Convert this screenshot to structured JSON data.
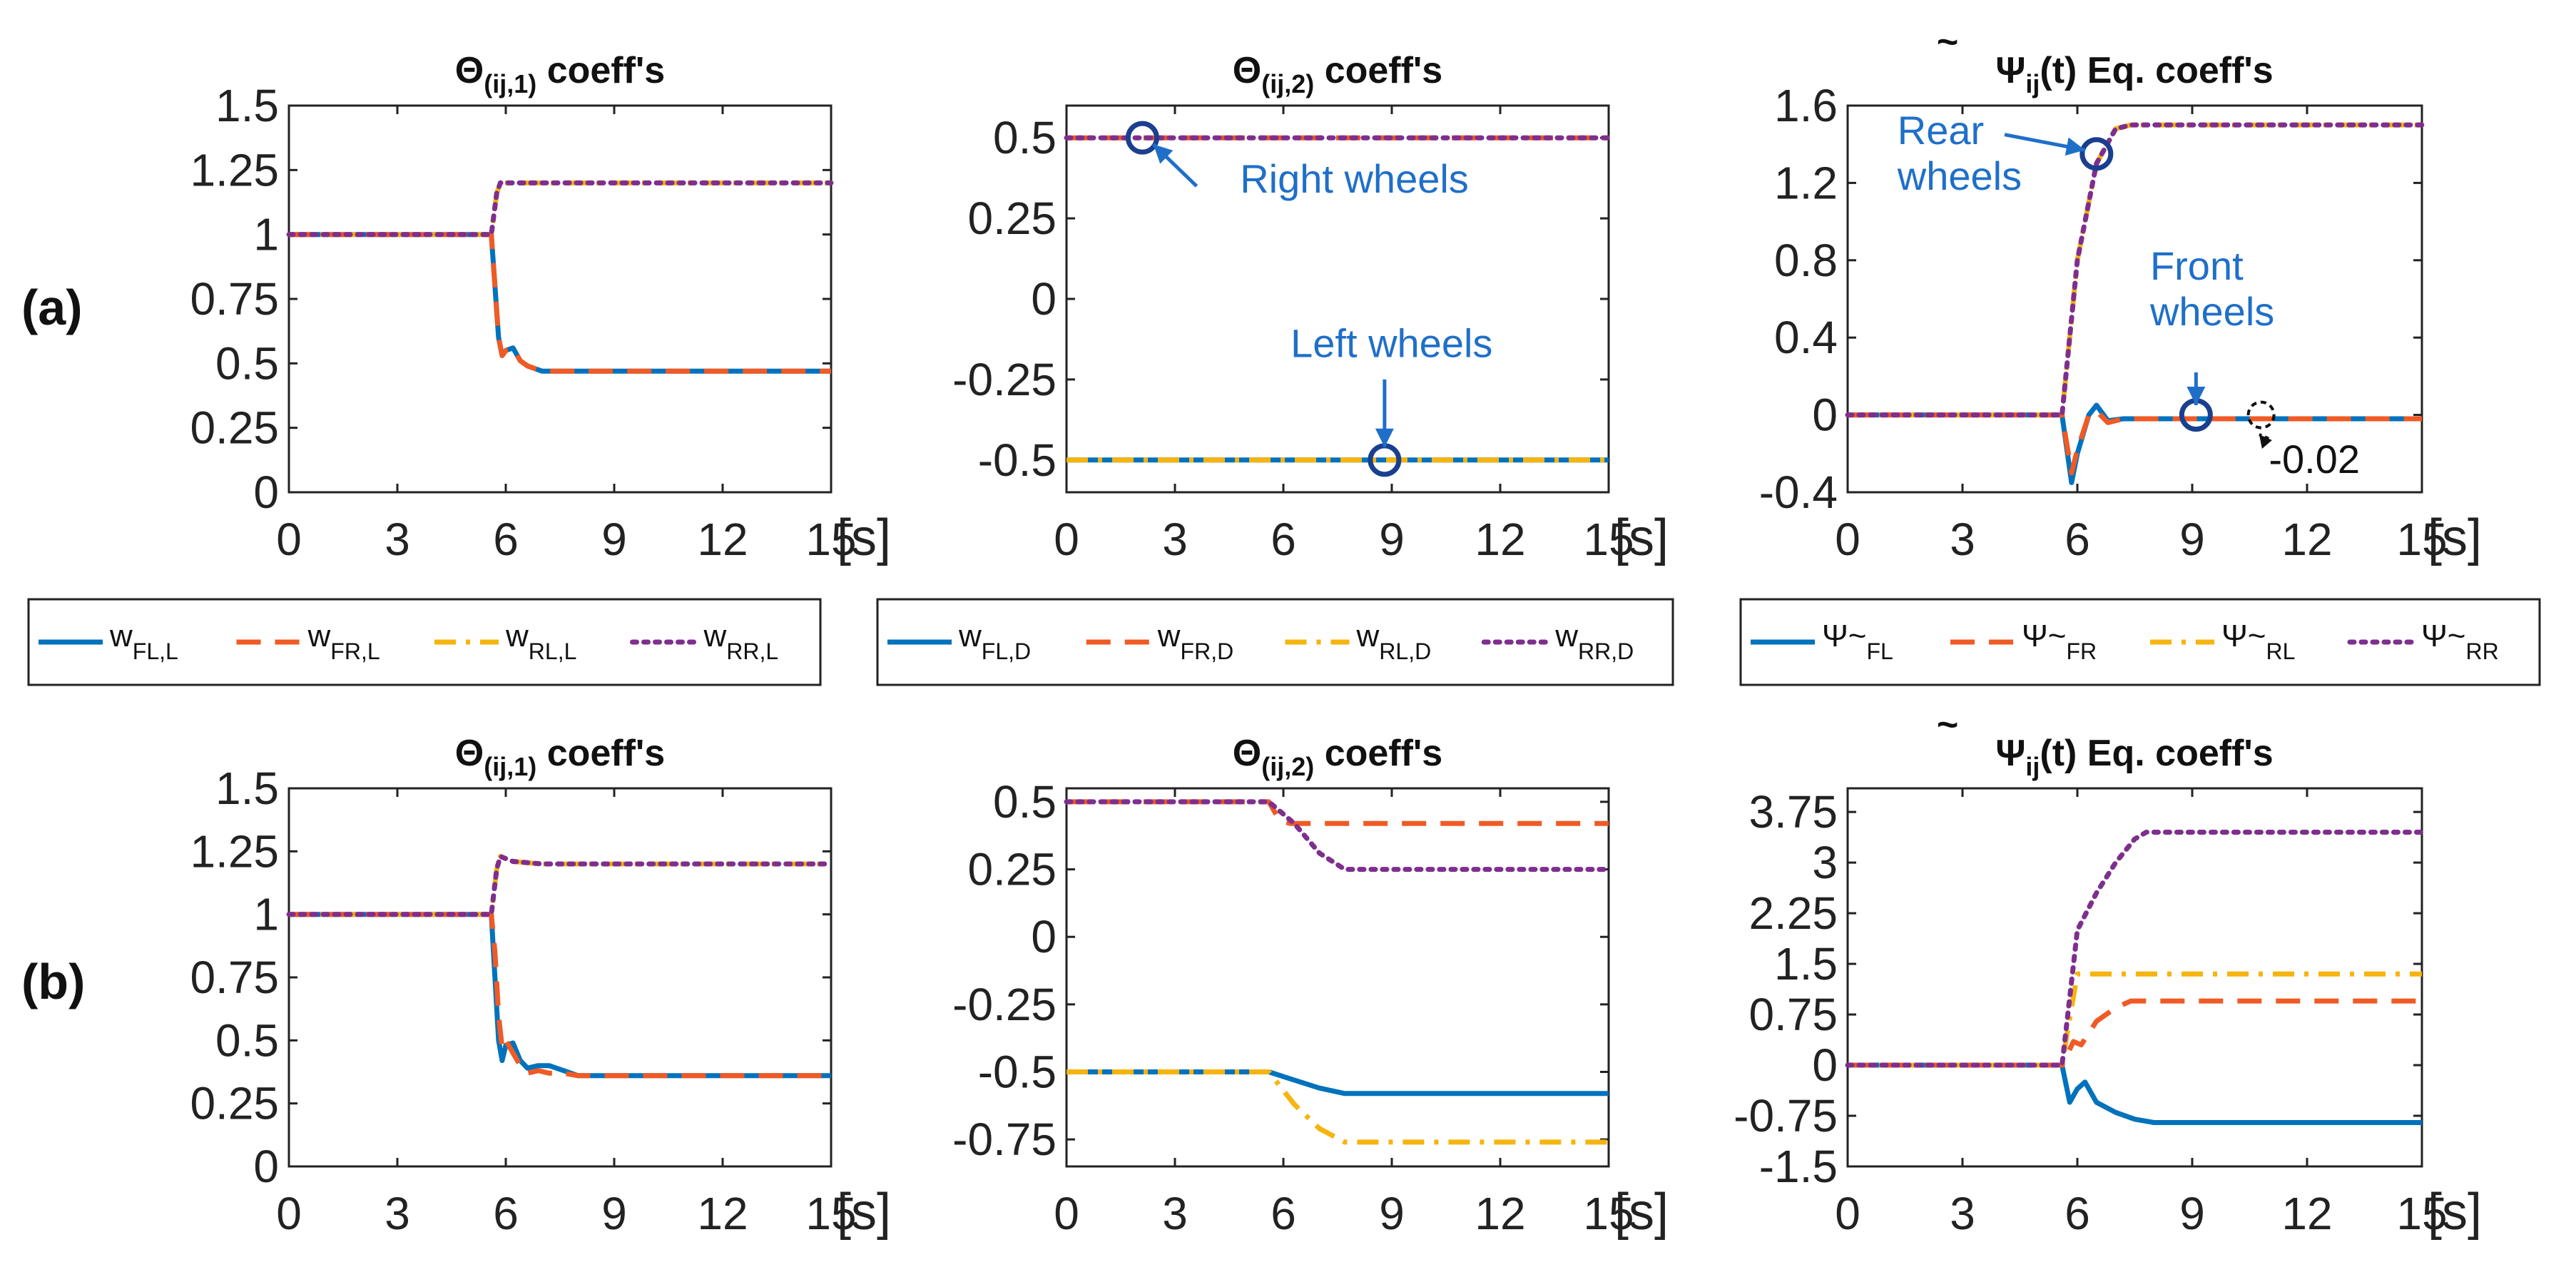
{
  "colors": {
    "FL": "#0072BD",
    "FR": "#F05A24",
    "RL": "#F5B40F",
    "RR": "#7E2F8E",
    "annotation": "#1f6fc9"
  },
  "x_unit": "[s]",
  "row_labels": [
    "(a)",
    "(b)"
  ],
  "legends": [
    {
      "entries": [
        {
          "base": "w",
          "sub": "FL,L",
          "key": "FL"
        },
        {
          "base": "w",
          "sub": "FR,L",
          "key": "FR"
        },
        {
          "base": "w",
          "sub": "RL,L",
          "key": "RL"
        },
        {
          "base": "w",
          "sub": "RR,L",
          "key": "RR"
        }
      ]
    },
    {
      "entries": [
        {
          "base": "w",
          "sub": "FL,D",
          "key": "FL"
        },
        {
          "base": "w",
          "sub": "FR,D",
          "key": "FR"
        },
        {
          "base": "w",
          "sub": "RL,D",
          "key": "RL"
        },
        {
          "base": "w",
          "sub": "RR,D",
          "key": "RR"
        }
      ]
    },
    {
      "entries": [
        {
          "base": "Ψ~",
          "sub": "FL",
          "key": "FL"
        },
        {
          "base": "Ψ~",
          "sub": "FR",
          "key": "FR"
        },
        {
          "base": "Ψ~",
          "sub": "RL",
          "key": "RL"
        },
        {
          "base": "Ψ~",
          "sub": "RR",
          "key": "RR"
        }
      ]
    }
  ],
  "chart_data": [
    {
      "id": "a1",
      "type": "line",
      "title_main": "Θ",
      "title_sub": "(ij,1)",
      "title_rest": " coeff's",
      "xlim": [
        0,
        15
      ],
      "xticks": [
        "0",
        "3",
        "6",
        "9",
        "12",
        "15"
      ],
      "ylim": [
        0,
        1.5
      ],
      "yticks": [
        "0",
        "0.25",
        "0.5",
        "0.75",
        "1",
        "1.25",
        "1.5"
      ],
      "series": [
        {
          "name": "wFL,L",
          "key": "FL",
          "x": [
            0,
            5.6,
            5.7,
            5.8,
            5.9,
            6.0,
            6.2,
            6.4,
            6.6,
            7.0,
            15
          ],
          "y": [
            1,
            1,
            0.8,
            0.6,
            0.53,
            0.55,
            0.56,
            0.51,
            0.49,
            0.47,
            0.47
          ]
        },
        {
          "name": "wFR,L",
          "key": "FR",
          "x": [
            0,
            5.6,
            5.7,
            5.8,
            5.9,
            6.0,
            6.2,
            6.4,
            6.6,
            7.0,
            15
          ],
          "y": [
            1,
            1,
            0.8,
            0.6,
            0.53,
            0.55,
            0.56,
            0.51,
            0.49,
            0.47,
            0.47
          ]
        },
        {
          "name": "wRL,L",
          "key": "RL",
          "x": [
            0,
            5.6,
            5.75,
            5.85,
            15
          ],
          "y": [
            1,
            1,
            1.16,
            1.2,
            1.2
          ]
        },
        {
          "name": "wRR,L",
          "key": "RR",
          "x": [
            0,
            5.6,
            5.75,
            5.85,
            15
          ],
          "y": [
            1,
            1,
            1.16,
            1.2,
            1.2
          ]
        }
      ],
      "markers": [],
      "annotations": []
    },
    {
      "id": "a2",
      "type": "line",
      "title_main": "Θ",
      "title_sub": "(ij,2)",
      "title_rest": " coeff's",
      "xlim": [
        0,
        15
      ],
      "xticks": [
        "0",
        "3",
        "6",
        "9",
        "12",
        "15"
      ],
      "ylim": [
        -0.6,
        0.6
      ],
      "yticks": [
        "-0.5",
        "-0.25",
        "0",
        "0.25",
        "0.5"
      ],
      "series": [
        {
          "name": "wFL,D",
          "key": "FL",
          "x": [
            0,
            15
          ],
          "y": [
            -0.5,
            -0.5
          ]
        },
        {
          "name": "wFR,D",
          "key": "FR",
          "x": [
            0,
            15
          ],
          "y": [
            0.5,
            0.5
          ]
        },
        {
          "name": "wRL,D",
          "key": "RL",
          "x": [
            0,
            15
          ],
          "y": [
            -0.5,
            -0.5
          ]
        },
        {
          "name": "wRR,D",
          "key": "RR",
          "x": [
            0,
            15
          ],
          "y": [
            0.5,
            0.5
          ]
        }
      ],
      "markers": [
        {
          "x": 2.1,
          "y": 0.5
        },
        {
          "x": 8.8,
          "y": -0.5
        }
      ],
      "annotations": [
        {
          "lines": [
            "Right wheels"
          ],
          "tx": 4.8,
          "ty": 0.33,
          "ax": 3.6,
          "ay": 0.35,
          "hx": 2.4,
          "hy": 0.48
        },
        {
          "lines": [
            "Left wheels"
          ],
          "tx": 6.2,
          "ty": -0.18,
          "ax": 8.8,
          "ay": -0.25,
          "hx": 8.8,
          "hy": -0.46
        }
      ]
    },
    {
      "id": "a3",
      "type": "line",
      "title_main": "Ψ",
      "title_sub": "ij",
      "title_rest": "(t) Eq. coeff's",
      "title_tilde": true,
      "xlim": [
        0,
        15
      ],
      "xticks": [
        "0",
        "3",
        "6",
        "9",
        "12",
        "15"
      ],
      "ylim": [
        -0.4,
        1.6
      ],
      "yticks": [
        "-0.4",
        "0",
        "0.4",
        "0.8",
        "1.2",
        "1.6"
      ],
      "series": [
        {
          "name": "Ψ~FL",
          "key": "FL",
          "x": [
            0,
            5.6,
            5.85,
            6.0,
            6.3,
            6.5,
            6.8,
            7.2,
            15
          ],
          "y": [
            0,
            0,
            -0.35,
            -0.2,
            0.0,
            0.05,
            -0.03,
            -0.02,
            -0.02
          ]
        },
        {
          "name": "Ψ~FR",
          "key": "FR",
          "x": [
            0,
            5.6,
            5.85,
            6.0,
            6.3,
            6.5,
            6.8,
            7.2,
            15
          ],
          "y": [
            0,
            0,
            -0.3,
            -0.18,
            0.0,
            0.02,
            -0.04,
            -0.02,
            -0.02
          ]
        },
        {
          "name": "Ψ~RL",
          "key": "RL",
          "x": [
            0,
            5.6,
            6.0,
            6.5,
            7.0,
            7.4,
            15
          ],
          "y": [
            0,
            0,
            0.8,
            1.3,
            1.48,
            1.5,
            1.5
          ]
        },
        {
          "name": "Ψ~RR",
          "key": "RR",
          "x": [
            0,
            5.6,
            6.0,
            6.5,
            7.0,
            7.4,
            15
          ],
          "y": [
            0,
            0,
            0.8,
            1.3,
            1.48,
            1.5,
            1.5
          ]
        }
      ],
      "markers": [
        {
          "x": 6.5,
          "y": 1.35
        },
        {
          "x": 9.1,
          "y": 0.0
        }
      ],
      "dashed_markers": [
        {
          "x": 10.8,
          "y": 0.0
        }
      ],
      "annotations": [
        {
          "lines": [
            "Rear",
            "wheels"
          ],
          "tx": 1.3,
          "ty": 1.4,
          "ax": 4.1,
          "ay": 1.45,
          "hx": 6.2,
          "hy": 1.37
        },
        {
          "lines": [
            "Front",
            "wheels"
          ],
          "tx": 7.9,
          "ty": 0.7,
          "ax": 9.1,
          "ay": 0.22,
          "hx": 9.1,
          "hy": 0.05
        }
      ],
      "callout": {
        "text": "-0.02",
        "tx": 11.0,
        "ty": -0.27,
        "hx": 10.75,
        "hy": -0.02
      }
    },
    {
      "id": "b1",
      "type": "line",
      "title_main": "Θ",
      "title_sub": "(ij,1)",
      "title_rest": " coeff's",
      "xlim": [
        0,
        15
      ],
      "xticks": [
        "0",
        "3",
        "6",
        "9",
        "12",
        "15"
      ],
      "ylim": [
        0,
        1.5
      ],
      "yticks": [
        "0",
        "0.25",
        "0.5",
        "0.75",
        "1",
        "1.25",
        "1.5"
      ],
      "series": [
        {
          "name": "wFL,L",
          "key": "FL",
          "x": [
            0,
            5.6,
            5.7,
            5.8,
            5.9,
            6.0,
            6.2,
            6.4,
            6.6,
            6.9,
            7.2,
            7.6,
            8.0,
            15
          ],
          "y": [
            1,
            1,
            0.75,
            0.5,
            0.42,
            0.48,
            0.49,
            0.42,
            0.39,
            0.4,
            0.4,
            0.38,
            0.36,
            0.36
          ]
        },
        {
          "name": "wFR,L",
          "key": "FR",
          "x": [
            0,
            5.6,
            5.7,
            5.8,
            5.9,
            6.0,
            6.2,
            6.4,
            6.6,
            6.9,
            7.2,
            7.6,
            8.0,
            15
          ],
          "y": [
            1,
            1,
            0.85,
            0.6,
            0.47,
            0.5,
            0.45,
            0.4,
            0.37,
            0.38,
            0.37,
            0.37,
            0.36,
            0.36
          ]
        },
        {
          "name": "wRL,L",
          "key": "RL",
          "x": [
            0,
            5.6,
            5.75,
            5.85,
            6.2,
            7.0,
            15
          ],
          "y": [
            1,
            1,
            1.18,
            1.23,
            1.21,
            1.2,
            1.2
          ]
        },
        {
          "name": "wRR,L",
          "key": "RR",
          "x": [
            0,
            5.6,
            5.75,
            5.85,
            6.2,
            7.0,
            15
          ],
          "y": [
            1,
            1,
            1.18,
            1.23,
            1.21,
            1.2,
            1.2
          ]
        }
      ],
      "markers": [],
      "annotations": []
    },
    {
      "id": "b2",
      "type": "line",
      "title_main": "Θ",
      "title_sub": "(ij,2)",
      "title_rest": " coeff's",
      "xlim": [
        0,
        15
      ],
      "xticks": [
        "0",
        "3",
        "6",
        "9",
        "12",
        "15"
      ],
      "ylim": [
        -0.85,
        0.55
      ],
      "yticks": [
        "-0.75",
        "-0.5",
        "-0.25",
        "0",
        "0.25",
        "0.5"
      ],
      "series": [
        {
          "name": "wFL,D",
          "key": "FL",
          "x": [
            0,
            5.6,
            6.3,
            7.0,
            7.7,
            15
          ],
          "y": [
            -0.5,
            -0.5,
            -0.53,
            -0.56,
            -0.58,
            -0.58
          ]
        },
        {
          "name": "wFR,D",
          "key": "FR",
          "x": [
            0,
            5.6,
            5.9,
            6.2,
            15
          ],
          "y": [
            0.5,
            0.5,
            0.43,
            0.42,
            0.42
          ]
        },
        {
          "name": "wRL,D",
          "key": "RL",
          "x": [
            0,
            5.6,
            6.3,
            7.0,
            7.7,
            15
          ],
          "y": [
            -0.5,
            -0.5,
            -0.62,
            -0.71,
            -0.76,
            -0.76
          ]
        },
        {
          "name": "wRR,D",
          "key": "RR",
          "x": [
            0,
            5.6,
            6.3,
            7.0,
            7.7,
            15
          ],
          "y": [
            0.5,
            0.5,
            0.42,
            0.31,
            0.25,
            0.25
          ]
        }
      ],
      "markers": [],
      "annotations": []
    },
    {
      "id": "b3",
      "type": "line",
      "title_main": "Ψ",
      "title_sub": "ij",
      "title_rest": "(t) Eq. coeff's",
      "title_tilde": true,
      "xlim": [
        0,
        15
      ],
      "xticks": [
        "0",
        "3",
        "6",
        "9",
        "12",
        "15"
      ],
      "ylim": [
        -1.5,
        4.1
      ],
      "yticks": [
        "-1.5",
        "-0.75",
        "0",
        "0.75",
        "1.5",
        "2.25",
        "3",
        "3.75"
      ],
      "series": [
        {
          "name": "Ψ~FL",
          "key": "FL",
          "x": [
            0,
            5.6,
            5.8,
            6.0,
            6.2,
            6.5,
            7.0,
            7.5,
            8.0,
            15
          ],
          "y": [
            0,
            0,
            -0.55,
            -0.35,
            -0.25,
            -0.55,
            -0.7,
            -0.8,
            -0.85,
            -0.85
          ]
        },
        {
          "name": "Ψ~FR",
          "key": "FR",
          "x": [
            0,
            5.6,
            5.9,
            6.1,
            6.5,
            7.0,
            7.4,
            15
          ],
          "y": [
            0,
            0,
            0.35,
            0.3,
            0.65,
            0.85,
            0.95,
            0.95
          ]
        },
        {
          "name": "Ψ~RL",
          "key": "RL",
          "x": [
            0,
            5.6,
            5.8,
            6.0,
            15
          ],
          "y": [
            0,
            0,
            0.7,
            1.35,
            1.35
          ]
        },
        {
          "name": "Ψ~RR",
          "key": "RR",
          "x": [
            0,
            5.6,
            5.8,
            6.0,
            6.5,
            7.0,
            7.5,
            7.8,
            15
          ],
          "y": [
            0,
            0,
            1.0,
            2.0,
            2.55,
            3.0,
            3.35,
            3.45,
            3.45
          ]
        }
      ],
      "markers": [],
      "annotations": []
    }
  ]
}
